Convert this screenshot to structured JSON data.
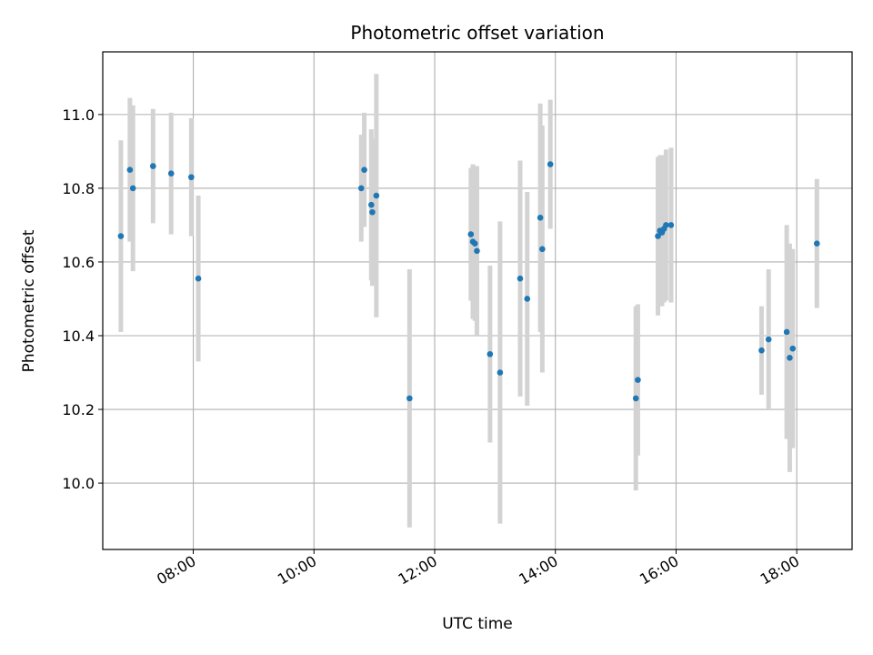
{
  "chart_data": {
    "type": "scatter",
    "title": "Photometric offset variation",
    "xlabel": "UTC time",
    "ylabel": "Photometric offset",
    "xlim": [
      "06:30",
      "18:55"
    ],
    "ylim": [
      9.82,
      11.17
    ],
    "x_ticks": [
      "08:00",
      "10:00",
      "12:00",
      "14:00",
      "16:00",
      "18:00"
    ],
    "y_ticks": [
      10.0,
      10.2,
      10.4,
      10.6,
      10.8,
      11.0
    ],
    "grid": true,
    "marker_color": "#1f77b4",
    "errorbar_color": "#d3d3d3",
    "points": [
      {
        "x": "06:48",
        "y": 10.67,
        "err": 0.26
      },
      {
        "x": "06:57",
        "y": 10.85,
        "err": 0.195
      },
      {
        "x": "07:00",
        "y": 10.8,
        "err": 0.225
      },
      {
        "x": "07:20",
        "y": 10.86,
        "err": 0.155
      },
      {
        "x": "07:38",
        "y": 10.84,
        "err": 0.165
      },
      {
        "x": "07:58",
        "y": 10.83,
        "err": 0.16
      },
      {
        "x": "08:05",
        "y": 10.555,
        "err": 0.225
      },
      {
        "x": "10:47",
        "y": 10.8,
        "err": 0.145
      },
      {
        "x": "10:50",
        "y": 10.85,
        "err": 0.155
      },
      {
        "x": "10:57",
        "y": 10.755,
        "err": 0.205
      },
      {
        "x": "10:58",
        "y": 10.735,
        "err": 0.2
      },
      {
        "x": "11:02",
        "y": 10.78,
        "err": 0.33
      },
      {
        "x": "11:35",
        "y": 10.23,
        "err": 0.35
      },
      {
        "x": "12:36",
        "y": 10.675,
        "err": 0.18
      },
      {
        "x": "12:38",
        "y": 10.655,
        "err": 0.21
      },
      {
        "x": "12:40",
        "y": 10.65,
        "err": 0.21
      },
      {
        "x": "12:42",
        "y": 10.63,
        "err": 0.23
      },
      {
        "x": "12:55",
        "y": 10.35,
        "err": 0.24
      },
      {
        "x": "13:05",
        "y": 10.3,
        "err": 0.41
      },
      {
        "x": "13:25",
        "y": 10.555,
        "err": 0.32
      },
      {
        "x": "13:32",
        "y": 10.5,
        "err": 0.29
      },
      {
        "x": "13:45",
        "y": 10.72,
        "err": 0.31
      },
      {
        "x": "13:47",
        "y": 10.635,
        "err": 0.335
      },
      {
        "x": "13:55",
        "y": 10.865,
        "err": 0.175
      },
      {
        "x": "15:20",
        "y": 10.23,
        "err": 0.25
      },
      {
        "x": "15:22",
        "y": 10.28,
        "err": 0.205
      },
      {
        "x": "15:42",
        "y": 10.67,
        "err": 0.215
      },
      {
        "x": "15:44",
        "y": 10.685,
        "err": 0.205
      },
      {
        "x": "15:46",
        "y": 10.68,
        "err": 0.2
      },
      {
        "x": "15:48",
        "y": 10.69,
        "err": 0.2
      },
      {
        "x": "15:50",
        "y": 10.7,
        "err": 0.205
      },
      {
        "x": "15:55",
        "y": 10.7,
        "err": 0.21
      },
      {
        "x": "17:25",
        "y": 10.36,
        "err": 0.12
      },
      {
        "x": "17:32",
        "y": 10.39,
        "err": 0.19
      },
      {
        "x": "17:50",
        "y": 10.41,
        "err": 0.29
      },
      {
        "x": "17:53",
        "y": 10.34,
        "err": 0.31
      },
      {
        "x": "17:56",
        "y": 10.365,
        "err": 0.27
      },
      {
        "x": "18:20",
        "y": 10.65,
        "err": 0.175
      }
    ]
  }
}
